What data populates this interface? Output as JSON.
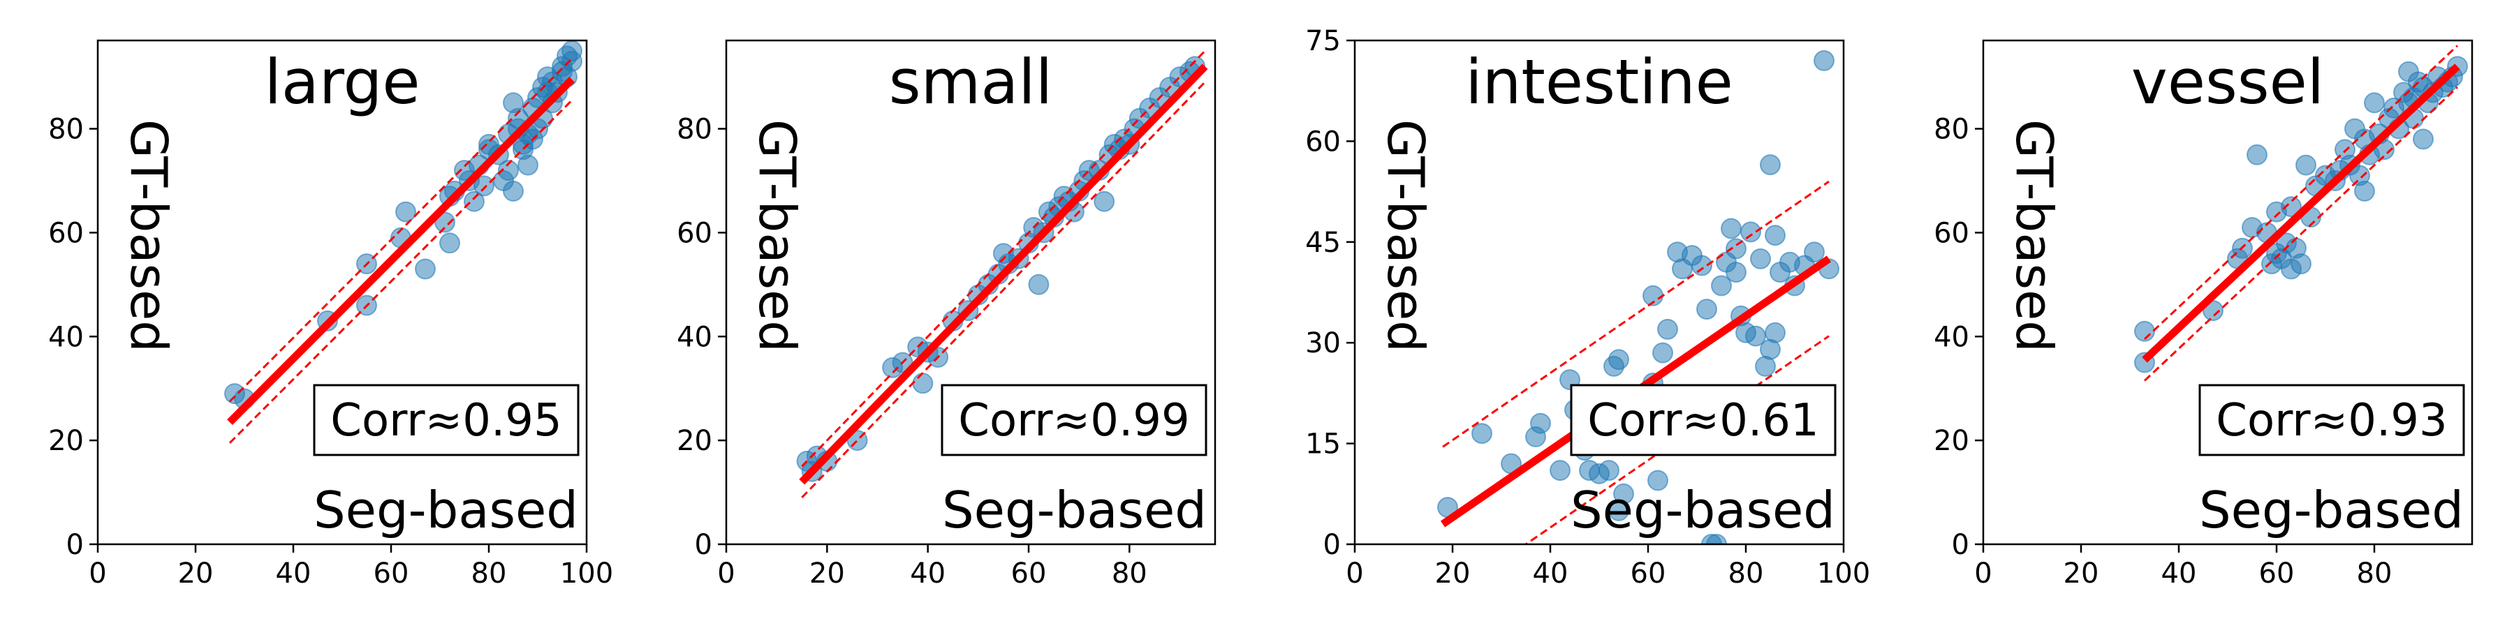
{
  "colors": {
    "point": "#1f77b4",
    "fit": "#ff0000",
    "band": "#ff0000",
    "axis": "#000000"
  },
  "chart_data": [
    {
      "type": "scatter",
      "title": "large",
      "xlabel": "Seg-based",
      "ylabel": "GT-based",
      "annotation": "Corr≈0.95",
      "xlim": [
        0,
        100
      ],
      "ylim": [
        0,
        97
      ],
      "xticks": [
        0,
        20,
        40,
        60,
        80,
        100
      ],
      "yticks": [
        0,
        20,
        40,
        60,
        80
      ],
      "fit": {
        "x": [
          27,
          97
        ],
        "y": [
          23.5,
          89.5
        ]
      },
      "band": {
        "upper": [
          27.5,
          93.5
        ],
        "lower": [
          19.5,
          85.5
        ]
      },
      "points": [
        [
          28,
          29
        ],
        [
          30,
          28
        ],
        [
          47,
          43
        ],
        [
          55,
          46
        ],
        [
          55,
          54
        ],
        [
          62,
          59
        ],
        [
          63,
          64
        ],
        [
          67,
          53
        ],
        [
          71,
          62
        ],
        [
          72,
          58
        ],
        [
          72,
          67
        ],
        [
          73,
          68
        ],
        [
          75,
          72
        ],
        [
          76,
          70
        ],
        [
          77,
          66
        ],
        [
          78,
          73
        ],
        [
          79,
          69
        ],
        [
          80,
          76
        ],
        [
          80,
          77
        ],
        [
          82,
          75
        ],
        [
          83,
          70
        ],
        [
          84,
          79
        ],
        [
          84,
          72
        ],
        [
          85,
          68
        ],
        [
          85,
          85
        ],
        [
          86,
          80
        ],
        [
          86,
          82
        ],
        [
          87,
          76
        ],
        [
          87,
          77
        ],
        [
          88,
          73
        ],
        [
          88,
          79
        ],
        [
          89,
          84
        ],
        [
          89,
          78
        ],
        [
          90,
          80
        ],
        [
          90,
          86
        ],
        [
          91,
          82
        ],
        [
          91,
          88
        ],
        [
          92,
          90
        ],
        [
          92,
          87
        ],
        [
          93,
          85
        ],
        [
          93,
          89
        ],
        [
          94,
          87
        ],
        [
          95,
          91
        ],
        [
          95,
          92
        ],
        [
          96,
          90
        ],
        [
          96,
          94
        ],
        [
          97,
          93
        ],
        [
          97,
          95
        ]
      ]
    },
    {
      "type": "scatter",
      "title": "small",
      "xlabel": "Seg-based",
      "ylabel": "GT-based",
      "annotation": "Corr≈0.99",
      "xlim": [
        0,
        97
      ],
      "ylim": [
        0,
        97
      ],
      "xticks": [
        0,
        20,
        40,
        60,
        80
      ],
      "yticks": [
        0,
        20,
        40,
        60,
        80
      ],
      "fit": {
        "x": [
          15,
          95
        ],
        "y": [
          12,
          92
        ]
      },
      "band": {
        "upper": [
          15,
          95
        ],
        "lower": [
          9,
          89
        ]
      },
      "points": [
        [
          16,
          16
        ],
        [
          17,
          14
        ],
        [
          18,
          17
        ],
        [
          20,
          16
        ],
        [
          26,
          20
        ],
        [
          33,
          34
        ],
        [
          35,
          35
        ],
        [
          38,
          38
        ],
        [
          39,
          31
        ],
        [
          40,
          37
        ],
        [
          42,
          36
        ],
        [
          45,
          43
        ],
        [
          48,
          45
        ],
        [
          50,
          48
        ],
        [
          52,
          50
        ],
        [
          54,
          52
        ],
        [
          55,
          56
        ],
        [
          56,
          54
        ],
        [
          58,
          55
        ],
        [
          60,
          58
        ],
        [
          61,
          61
        ],
        [
          62,
          50
        ],
        [
          63,
          60
        ],
        [
          64,
          64
        ],
        [
          65,
          63
        ],
        [
          66,
          65
        ],
        [
          67,
          67
        ],
        [
          68,
          66
        ],
        [
          69,
          64
        ],
        [
          70,
          68
        ],
        [
          71,
          70
        ],
        [
          72,
          72
        ],
        [
          74,
          72
        ],
        [
          75,
          66
        ],
        [
          76,
          75
        ],
        [
          77,
          77
        ],
        [
          78,
          76
        ],
        [
          79,
          78
        ],
        [
          80,
          77
        ],
        [
          81,
          80
        ],
        [
          82,
          82
        ],
        [
          84,
          84
        ],
        [
          86,
          86
        ],
        [
          88,
          88
        ],
        [
          90,
          90
        ],
        [
          92,
          91
        ],
        [
          93,
          92
        ]
      ]
    },
    {
      "type": "scatter",
      "title": "intestine",
      "xlabel": "Seg-based",
      "ylabel": "GT-based",
      "annotation": "Corr≈0.61",
      "xlim": [
        0,
        100
      ],
      "ylim": [
        0,
        75
      ],
      "xticks": [
        0,
        20,
        40,
        60,
        80,
        100
      ],
      "yticks": [
        0,
        15,
        30,
        45,
        60,
        75
      ],
      "fit": {
        "x": [
          18,
          97
        ],
        "y": [
          3,
          42.5
        ]
      },
      "band": {
        "upper": [
          14.5,
          54
        ],
        "lower": [
          -8.5,
          31
        ]
      },
      "points": [
        [
          19,
          5.5
        ],
        [
          26,
          16.5
        ],
        [
          32,
          12
        ],
        [
          37,
          16
        ],
        [
          38,
          18
        ],
        [
          42,
          11
        ],
        [
          44,
          24.5
        ],
        [
          45,
          20
        ],
        [
          47,
          14
        ],
        [
          48,
          11
        ],
        [
          50,
          10.5
        ],
        [
          52,
          11
        ],
        [
          53,
          26.5
        ],
        [
          54,
          27.5
        ],
        [
          54,
          5
        ],
        [
          55,
          7.5
        ],
        [
          57,
          22
        ],
        [
          58,
          21
        ],
        [
          60,
          18
        ],
        [
          61,
          24
        ],
        [
          61,
          37
        ],
        [
          62,
          9.5
        ],
        [
          63,
          28.5
        ],
        [
          64,
          32
        ],
        [
          66,
          43.5
        ],
        [
          67,
          41
        ],
        [
          69,
          43
        ],
        [
          71,
          41.5
        ],
        [
          72,
          35
        ],
        [
          73,
          0
        ],
        [
          74,
          0
        ],
        [
          75,
          38.5
        ],
        [
          76,
          42
        ],
        [
          77,
          47
        ],
        [
          78,
          40.5
        ],
        [
          78,
          44
        ],
        [
          79,
          34
        ],
        [
          80,
          31.5
        ],
        [
          81,
          46.5
        ],
        [
          82,
          31
        ],
        [
          83,
          42.5
        ],
        [
          84,
          26.5
        ],
        [
          85,
          56.5
        ],
        [
          85,
          29
        ],
        [
          86,
          31.5
        ],
        [
          86,
          46
        ],
        [
          87,
          40.5
        ],
        [
          89,
          42
        ],
        [
          90,
          38.5
        ],
        [
          92,
          41.5
        ],
        [
          94,
          43.5
        ],
        [
          96,
          72
        ],
        [
          97,
          41
        ]
      ]
    },
    {
      "type": "scatter",
      "title": "vessel",
      "xlabel": "Seg-based",
      "ylabel": "GT-based",
      "annotation": "Corr≈0.93",
      "xlim": [
        0,
        100
      ],
      "ylim": [
        0,
        97
      ],
      "xticks": [
        0,
        20,
        40,
        60,
        80
      ],
      "yticks": [
        0,
        20,
        40,
        60,
        80
      ],
      "fit": {
        "x": [
          33,
          97
        ],
        "y": [
          35.5,
          92
        ]
      },
      "band": {
        "upper": [
          39.5,
          96
        ],
        "lower": [
          31.5,
          88
        ]
      },
      "points": [
        [
          33,
          41
        ],
        [
          33,
          35
        ],
        [
          47,
          45
        ],
        [
          52,
          55
        ],
        [
          53,
          57
        ],
        [
          55,
          61
        ],
        [
          56,
          75
        ],
        [
          58,
          60
        ],
        [
          59,
          54
        ],
        [
          60,
          56
        ],
        [
          60,
          64
        ],
        [
          61,
          55
        ],
        [
          62,
          58
        ],
        [
          63,
          53
        ],
        [
          63,
          65
        ],
        [
          64,
          57
        ],
        [
          65,
          54
        ],
        [
          66,
          73
        ],
        [
          67,
          63
        ],
        [
          68,
          69
        ],
        [
          70,
          71
        ],
        [
          72,
          70
        ],
        [
          73,
          72
        ],
        [
          74,
          76
        ],
        [
          75,
          73
        ],
        [
          76,
          80
        ],
        [
          77,
          71
        ],
        [
          78,
          68
        ],
        [
          78,
          78
        ],
        [
          79,
          75
        ],
        [
          80,
          85
        ],
        [
          81,
          79
        ],
        [
          82,
          76
        ],
        [
          83,
          82
        ],
        [
          84,
          84
        ],
        [
          85,
          80
        ],
        [
          86,
          87
        ],
        [
          87,
          85
        ],
        [
          87,
          91
        ],
        [
          88,
          82
        ],
        [
          88,
          86
        ],
        [
          89,
          89
        ],
        [
          90,
          78
        ],
        [
          90,
          88
        ],
        [
          91,
          85
        ],
        [
          92,
          87
        ],
        [
          93,
          90
        ],
        [
          94,
          88
        ],
        [
          95,
          89
        ],
        [
          96,
          90
        ],
        [
          97,
          92
        ]
      ]
    }
  ]
}
